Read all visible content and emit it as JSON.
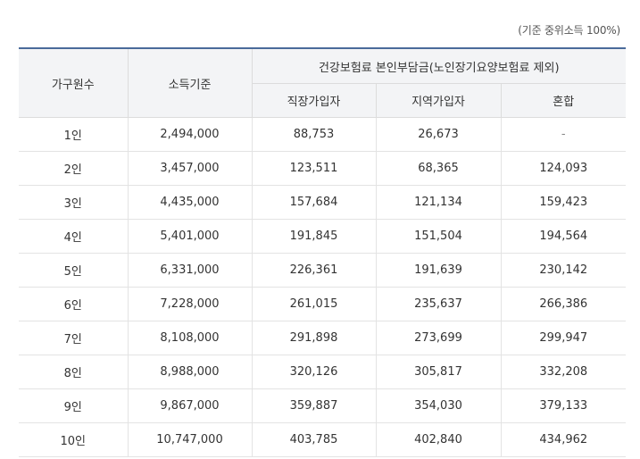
{
  "caption": "(기준 중위소득 100%)",
  "table": {
    "headers": {
      "household": "가구원수",
      "income": "소득기준",
      "premium_group": "건강보험료 본인부담금(노인장기요양보험료 제외)",
      "employee": "직장가입자",
      "regional": "지역가입자",
      "mixed": "혼합"
    },
    "rows": [
      {
        "household": "1인",
        "income": "2,494,000",
        "employee": "88,753",
        "regional": "26,673",
        "mixed": "-"
      },
      {
        "household": "2인",
        "income": "3,457,000",
        "employee": "123,511",
        "regional": "68,365",
        "mixed": "124,093"
      },
      {
        "household": "3인",
        "income": "4,435,000",
        "employee": "157,684",
        "regional": "121,134",
        "mixed": "159,423"
      },
      {
        "household": "4인",
        "income": "5,401,000",
        "employee": "191,845",
        "regional": "151,504",
        "mixed": "194,564"
      },
      {
        "household": "5인",
        "income": "6,331,000",
        "employee": "226,361",
        "regional": "191,639",
        "mixed": "230,142"
      },
      {
        "household": "6인",
        "income": "7,228,000",
        "employee": "261,015",
        "regional": "235,637",
        "mixed": "266,386"
      },
      {
        "household": "7인",
        "income": "8,108,000",
        "employee": "291,898",
        "regional": "273,699",
        "mixed": "299,947"
      },
      {
        "household": "8인",
        "income": "8,988,000",
        "employee": "320,126",
        "regional": "305,817",
        "mixed": "332,208"
      },
      {
        "household": "9인",
        "income": "9,867,000",
        "employee": "359,887",
        "regional": "354,030",
        "mixed": "379,133"
      },
      {
        "household": "10인",
        "income": "10,747,000",
        "employee": "403,785",
        "regional": "402,840",
        "mixed": "434,962"
      }
    ]
  },
  "colors": {
    "header_background": "#f3f4f6",
    "header_top_border": "#4a6a9a",
    "row_border": "#e3e3e3"
  }
}
